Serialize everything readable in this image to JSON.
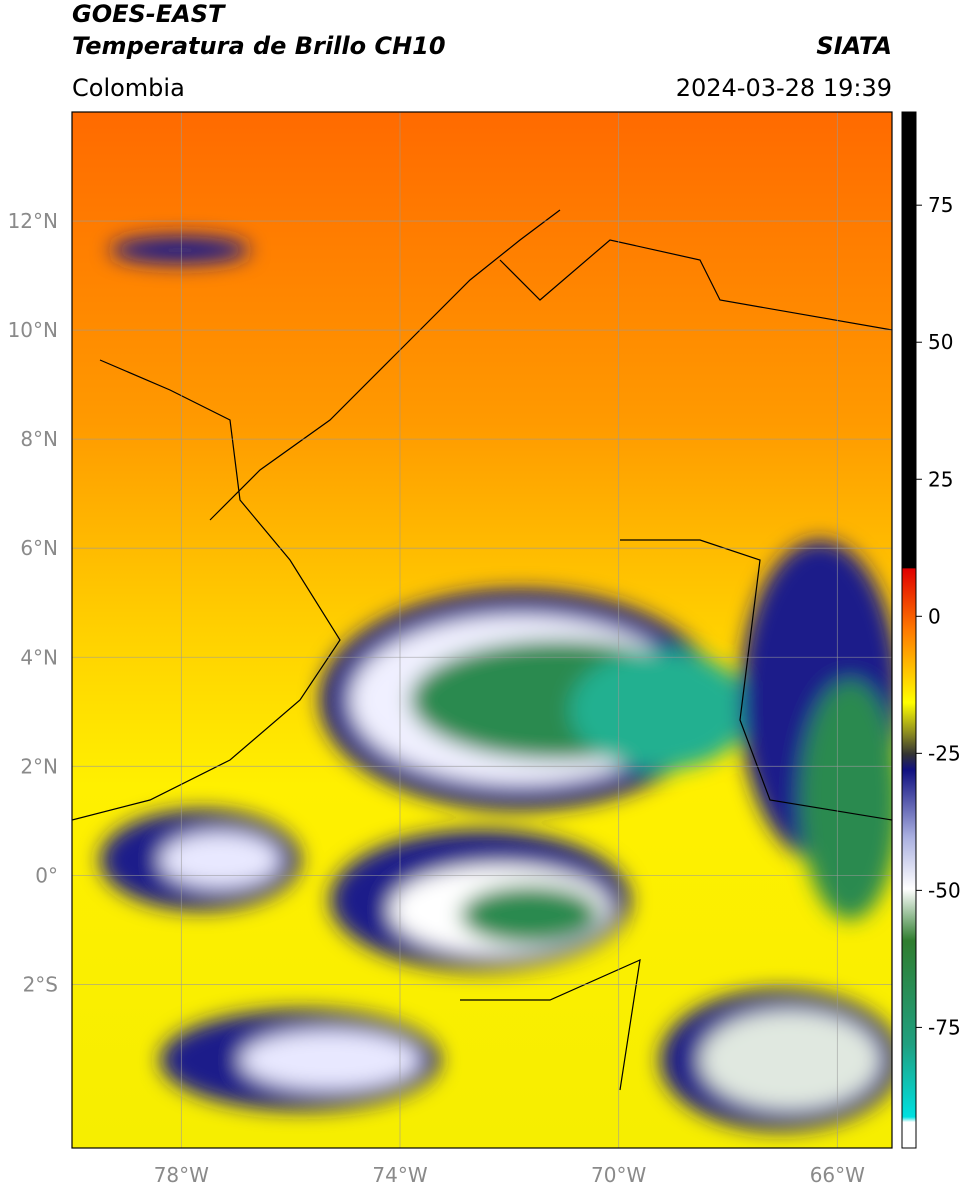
{
  "header": {
    "title_line1": "GOES-EAST",
    "title_line2": "Temperatura de Brillo CH10",
    "region": "Colombia",
    "source": "SIATA",
    "timestamp": "2024-03-28 19:39"
  },
  "map": {
    "lonlim": [
      -80,
      -65
    ],
    "latlim": [
      -5,
      14
    ],
    "grid": true,
    "lon_ticks": [
      {
        "value": -78,
        "label": "78°W"
      },
      {
        "value": -74,
        "label": "74°W"
      },
      {
        "value": -70,
        "label": "70°W"
      },
      {
        "value": -66,
        "label": "66°W"
      }
    ],
    "lat_ticks": [
      {
        "value": 12,
        "label": "12°N"
      },
      {
        "value": 10,
        "label": "10°N"
      },
      {
        "value": 8,
        "label": "8°N"
      },
      {
        "value": 6,
        "label": "6°N"
      },
      {
        "value": 4,
        "label": "4°N"
      },
      {
        "value": 2,
        "label": "2°N"
      },
      {
        "value": 0,
        "label": "0°"
      },
      {
        "value": -2,
        "label": "2°S"
      }
    ]
  },
  "colorbar": {
    "lim": [
      -97,
      92
    ],
    "ticks": [
      75,
      50,
      25,
      0,
      -25,
      -50,
      -75
    ]
  }
}
